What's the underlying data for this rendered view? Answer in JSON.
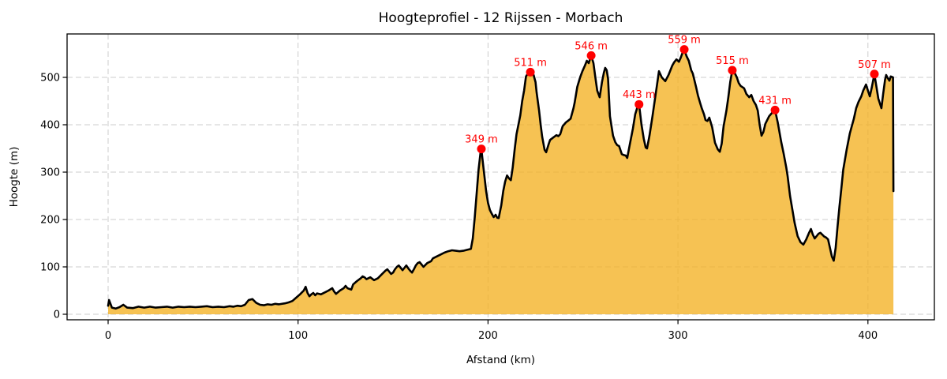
{
  "title": "Hoogteprofiel - 12 Rijssen - Morbach",
  "axes": {
    "xlabel": "Afstand (km)",
    "ylabel": "Hoogte (m)",
    "x_ticks": [
      0,
      100,
      200,
      300,
      400
    ],
    "y_ticks": [
      0,
      100,
      200,
      300,
      400,
      500
    ]
  },
  "colors": {
    "fill": "#F3B123",
    "fill_opacity": 0.78,
    "line": "#000000",
    "marker": "#FF0000",
    "peak_label": "#FF0000",
    "grid": "#CCCCCC",
    "frame": "#000000",
    "background": "#FFFFFF"
  },
  "chart_data": {
    "type": "area",
    "title": "Hoogteprofiel - 12 Rijssen - Morbach",
    "xlabel": "Afstand (km)",
    "ylabel": "Hoogte (m)",
    "xlim": [
      -22,
      435
    ],
    "ylim": [
      -12,
      592
    ],
    "grid": true,
    "x": [
      0,
      0.5,
      2,
      4,
      6,
      8,
      10,
      13,
      16,
      19,
      22,
      25,
      28,
      31,
      34,
      37,
      40,
      43,
      46,
      49,
      52,
      55,
      58,
      61,
      64,
      66,
      68,
      70,
      72,
      74,
      76,
      78,
      80,
      82,
      84,
      86,
      88,
      90,
      93,
      95,
      97,
      99,
      101,
      103,
      104,
      105,
      106,
      107,
      108,
      109,
      110,
      112,
      114,
      116,
      118,
      119,
      120,
      122,
      124,
      125,
      126,
      128,
      129,
      131,
      133,
      134,
      135,
      136,
      138,
      140,
      142,
      144,
      146,
      147,
      148,
      149,
      150,
      151,
      152,
      153,
      154,
      155,
      156,
      157,
      158,
      159,
      160,
      161,
      162,
      163,
      164,
      165,
      166,
      167,
      168,
      170,
      171,
      173,
      175,
      177,
      179,
      181,
      183,
      185,
      187,
      189,
      191,
      192,
      193,
      194,
      195,
      196,
      196.5,
      197,
      198,
      199,
      200,
      201,
      202,
      203,
      204,
      204.8,
      205.6,
      207,
      208,
      209,
      210,
      211,
      212,
      213,
      214,
      215,
      216,
      217,
      218,
      219,
      220,
      221,
      222.3,
      223,
      224,
      225,
      225.6,
      226.9,
      227.7,
      228.5,
      229.8,
      230.6,
      232,
      232.7,
      234,
      235,
      236,
      237,
      238,
      239.3,
      241,
      242,
      243.5,
      245,
      245.6,
      247,
      248.5,
      249.7,
      251,
      252,
      253,
      254.3,
      255.5,
      256.5,
      257.5,
      258.8,
      260,
      261,
      261.7,
      262.5,
      263.2,
      264.2,
      265.8,
      267,
      268,
      269,
      270.4,
      271.5,
      272.5,
      273.3,
      274.6,
      276.3,
      277.5,
      278.5,
      279.5,
      280.8,
      282,
      283,
      283.7,
      285,
      286.6,
      287.9,
      289,
      290,
      291.5,
      293.3,
      295,
      297,
      298,
      299.2,
      300.5,
      301.5,
      302.5,
      303.3,
      304.5,
      305.7,
      307,
      307.8,
      309.5,
      310.5,
      311.6,
      312.5,
      313.7,
      314.5,
      315.5,
      316.5,
      318,
      319.5,
      321,
      322,
      323,
      324,
      325.5,
      326.5,
      327.5,
      328.6,
      329.4,
      331,
      332,
      333,
      334.8,
      336,
      337.5,
      338.6,
      339.8,
      341,
      342,
      343,
      344,
      345,
      346,
      348,
      349.5,
      351.1,
      352.5,
      354.4,
      355.6,
      357,
      357.7,
      359,
      361.4,
      363,
      364.5,
      366,
      367.5,
      369,
      370,
      371,
      372,
      373,
      374,
      375,
      376,
      377,
      378,
      379,
      380,
      381,
      382,
      383,
      384,
      385,
      386,
      387,
      388.8,
      390.5,
      392.6,
      393.8,
      395,
      396.5,
      397.5,
      399,
      400,
      401,
      402,
      403.4,
      404.5,
      405.5,
      407.1,
      408,
      409,
      409.6,
      410.5,
      411.3,
      412,
      413.2,
      413.4
    ],
    "y": [
      18,
      30,
      14,
      12,
      15,
      20,
      14,
      13,
      16,
      14,
      16,
      14,
      15,
      16,
      14,
      16,
      15,
      16,
      15,
      16,
      17,
      15,
      16,
      15,
      17,
      16,
      18,
      17,
      20,
      30,
      32,
      24,
      20,
      19,
      21,
      20,
      22,
      21,
      23,
      25,
      28,
      35,
      42,
      50,
      58,
      45,
      38,
      42,
      45,
      40,
      44,
      42,
      46,
      50,
      55,
      48,
      43,
      50,
      55,
      60,
      55,
      52,
      63,
      70,
      76,
      80,
      78,
      74,
      78,
      72,
      76,
      84,
      92,
      95,
      90,
      85,
      88,
      95,
      100,
      103,
      98,
      93,
      98,
      103,
      97,
      92,
      88,
      95,
      103,
      108,
      110,
      105,
      100,
      104,
      108,
      112,
      118,
      122,
      126,
      130,
      133,
      135,
      134,
      133,
      134,
      136,
      138,
      160,
      205,
      255,
      305,
      340,
      349,
      330,
      295,
      260,
      235,
      220,
      212,
      205,
      210,
      204,
      203,
      230,
      260,
      280,
      293,
      287,
      283,
      310,
      347,
      380,
      400,
      420,
      450,
      472,
      502,
      508,
      511,
      508,
      505,
      490,
      468,
      430,
      400,
      375,
      347,
      342,
      360,
      368,
      372,
      375,
      378,
      376,
      380,
      397,
      405,
      408,
      413,
      435,
      447,
      480,
      500,
      513,
      525,
      535,
      530,
      546,
      530,
      500,
      472,
      458,
      490,
      510,
      520,
      515,
      497,
      418,
      377,
      363,
      357,
      355,
      338,
      336,
      335,
      330,
      358,
      393,
      422,
      435,
      443,
      400,
      370,
      352,
      350,
      377,
      418,
      455,
      485,
      513,
      500,
      492,
      505,
      525,
      532,
      538,
      533,
      542,
      553,
      559,
      545,
      535,
      515,
      508,
      480,
      462,
      447,
      435,
      422,
      410,
      408,
      415,
      395,
      362,
      348,
      343,
      360,
      397,
      430,
      458,
      490,
      515,
      513,
      500,
      488,
      482,
      477,
      465,
      458,
      463,
      450,
      442,
      430,
      400,
      377,
      385,
      402,
      418,
      425,
      431,
      405,
      363,
      340,
      310,
      292,
      250,
      193,
      165,
      152,
      147,
      158,
      172,
      180,
      168,
      160,
      165,
      170,
      172,
      168,
      164,
      162,
      158,
      140,
      122,
      113,
      140,
      185,
      227,
      265,
      305,
      347,
      382,
      413,
      435,
      448,
      460,
      472,
      485,
      472,
      460,
      478,
      507,
      480,
      455,
      435,
      465,
      495,
      505,
      498,
      493,
      502,
      500,
      260
    ],
    "peaks": [
      {
        "x": 196.5,
        "y": 349,
        "label": "349 m"
      },
      {
        "x": 222.3,
        "y": 511,
        "label": "511 m"
      },
      {
        "x": 254.3,
        "y": 546,
        "label": "546 m"
      },
      {
        "x": 279.5,
        "y": 443,
        "label": "443 m"
      },
      {
        "x": 303.3,
        "y": 559,
        "label": "559 m"
      },
      {
        "x": 328.6,
        "y": 515,
        "label": "515 m"
      },
      {
        "x": 351.1,
        "y": 431,
        "label": "431 m"
      },
      {
        "x": 403.4,
        "y": 507,
        "label": "507 m"
      }
    ]
  }
}
